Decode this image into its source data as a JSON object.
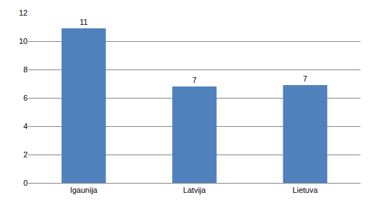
{
  "chart_data": {
    "type": "bar",
    "categories": [
      "Igaunija",
      "Latvija",
      "Lietuva"
    ],
    "values": [
      10.9,
      6.8,
      6.9
    ],
    "value_labels": [
      "11",
      "7",
      "7"
    ],
    "data_labels": true,
    "color": "#4f81bd",
    "ylim": [
      0,
      12
    ],
    "yticks": [
      0,
      2,
      4,
      6,
      8,
      10,
      12
    ],
    "grid": true
  }
}
